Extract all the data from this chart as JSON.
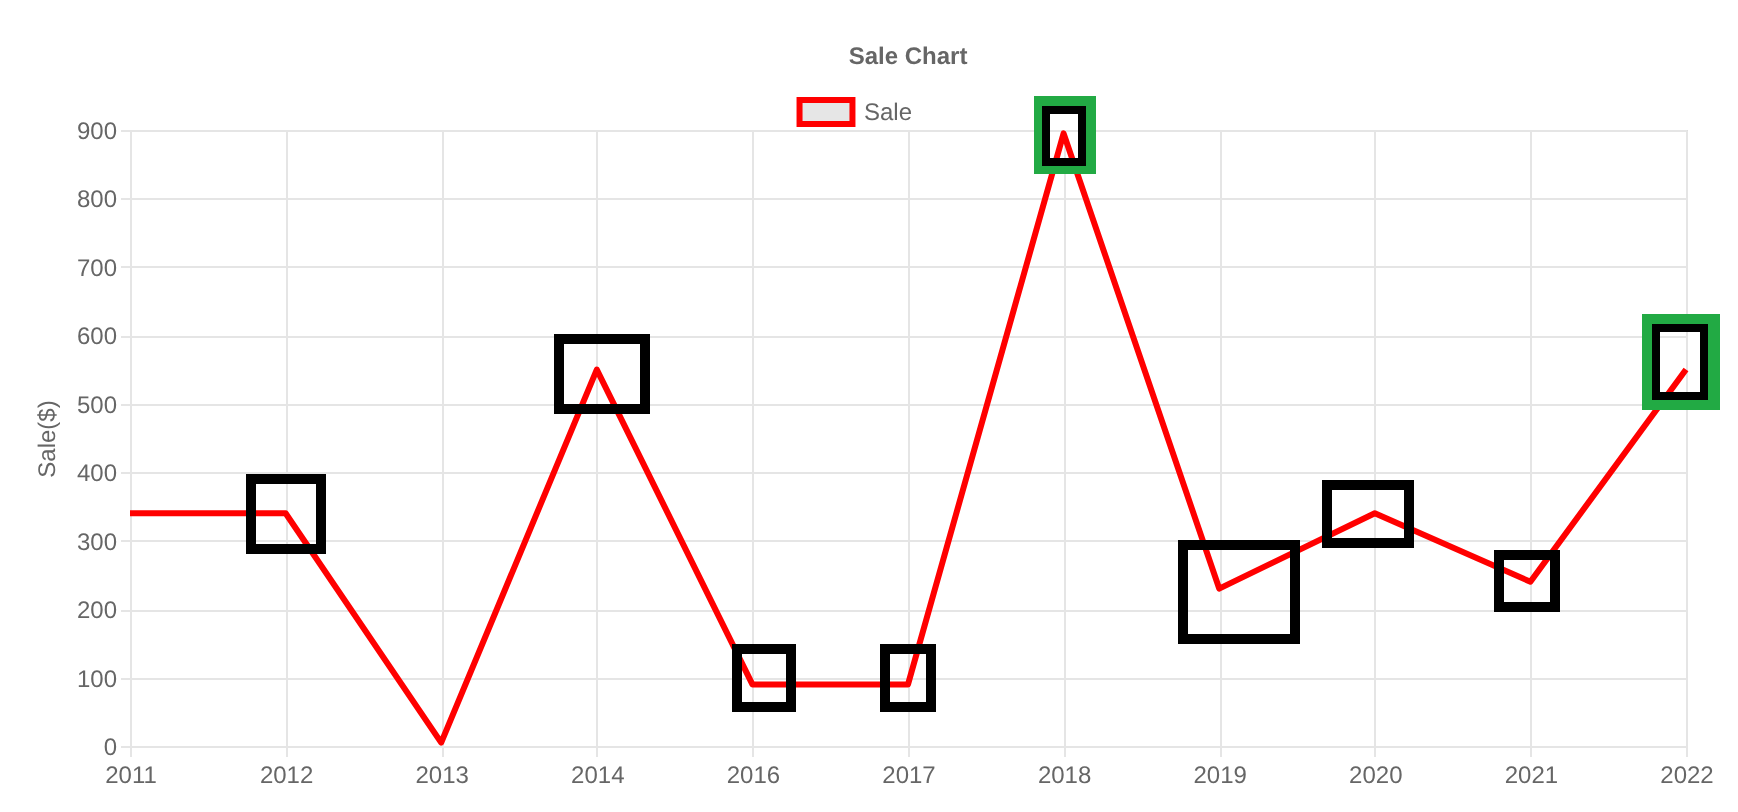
{
  "chart_data": {
    "type": "line",
    "title": "Sale Chart",
    "ylabel": "Sale($)",
    "categories": [
      "2011",
      "2012",
      "2013",
      "2014",
      "2016",
      "2017",
      "2018",
      "2019",
      "2020",
      "2021",
      "2022"
    ],
    "series": [
      {
        "name": "Sale",
        "color": "#ff0000",
        "values": [
          340,
          340,
          5,
          550,
          90,
          90,
          895,
          230,
          340,
          240,
          550
        ]
      }
    ],
    "ylim": [
      0,
      900
    ],
    "yticks": [
      0,
      100,
      200,
      300,
      400,
      500,
      600,
      700,
      800,
      900
    ],
    "grid": true,
    "legend": "top",
    "marker": "none"
  }
}
